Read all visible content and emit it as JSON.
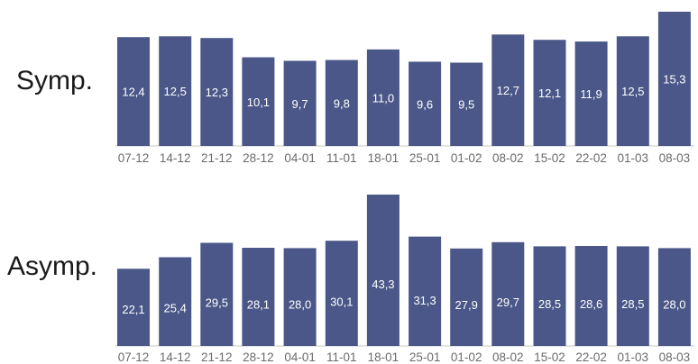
{
  "chart_data": [
    {
      "type": "bar",
      "row_label": "Symp.",
      "categories": [
        "07-12",
        "14-12",
        "21-12",
        "28-12",
        "04-01",
        "11-01",
        "18-01",
        "25-01",
        "01-02",
        "08-02",
        "15-02",
        "22-02",
        "01-03",
        "08-03"
      ],
      "values": [
        12.4,
        12.5,
        12.3,
        10.1,
        9.7,
        9.8,
        11.0,
        9.6,
        9.5,
        12.7,
        12.1,
        11.9,
        12.5,
        15.3
      ],
      "value_labels": [
        "12,4",
        "12,5",
        "12,3",
        "10,1",
        "9,7",
        "9,8",
        "11,0",
        "9,6",
        "9,5",
        "12,7",
        "12,1",
        "11,9",
        "12,5",
        "15,3"
      ],
      "bar_color": "#4a5788",
      "ylim": [
        0,
        15.3
      ]
    },
    {
      "type": "bar",
      "row_label": "Asymp.",
      "categories": [
        "07-12",
        "14-12",
        "21-12",
        "28-12",
        "04-01",
        "11-01",
        "18-01",
        "25-01",
        "01-02",
        "08-02",
        "15-02",
        "22-02",
        "01-03",
        "08-03"
      ],
      "values": [
        22.1,
        25.4,
        29.5,
        28.1,
        28.0,
        30.1,
        43.3,
        31.3,
        27.9,
        29.7,
        28.5,
        28.6,
        28.5,
        28.0
      ],
      "value_labels": [
        "22,1",
        "25,4",
        "29,5",
        "28,1",
        "28,0",
        "30,1",
        "43,3",
        "31,3",
        "27,9",
        "29,7",
        "28,5",
        "28,6",
        "28,5",
        "28,0"
      ],
      "bar_color": "#4a5788",
      "ylim": [
        0,
        43.3
      ]
    }
  ]
}
